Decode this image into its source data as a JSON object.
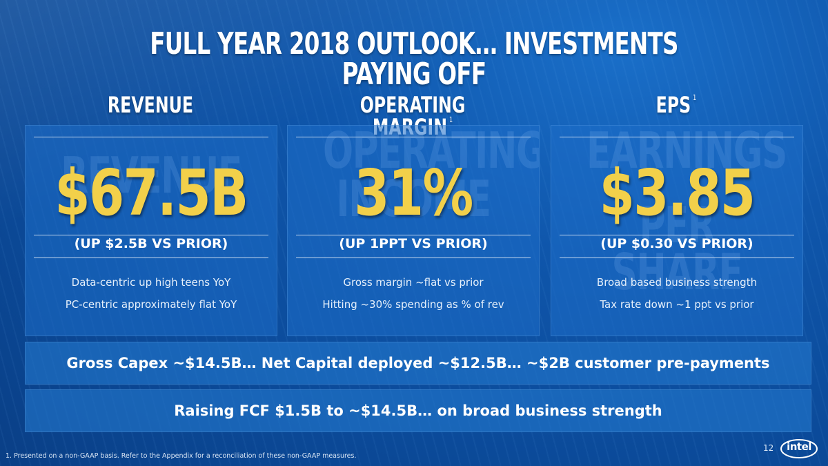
{
  "title": "FULL YEAR 2018 OUTLOOK… INVESTMENTS PAYING OFF",
  "columns": [
    {
      "heading": "REVENUE",
      "footnote_mark": "",
      "watermark": [
        "REVENUE"
      ],
      "value": "$67.5B",
      "sub": "(UP $2.5B VS PRIOR)",
      "bullets": [
        "Data-centric up high teens YoY",
        "PC-centric approximately flat YoY"
      ]
    },
    {
      "heading": "OPERATING MARGIN",
      "footnote_mark": "1",
      "watermark": [
        "OPERATING",
        "INCOME"
      ],
      "value": "31%",
      "sub": "(UP 1PPT VS PRIOR)",
      "bullets": [
        "Gross margin ~flat vs prior",
        "Hitting ~30% spending as % of rev"
      ]
    },
    {
      "heading": "EPS",
      "footnote_mark": "1",
      "watermark": [
        "EARNINGS",
        "PER SHARE"
      ],
      "value": "$3.85",
      "sub": "(UP $0.30 VS PRIOR)",
      "bullets": [
        "Broad based business strength",
        "Tax rate down ~1 ppt vs prior"
      ]
    }
  ],
  "banners": [
    "Gross Capex ~$14.5B… Net Capital deployed ~$12.5B… ~$2B customer pre-payments",
    "Raising FCF $1.5B to ~$14.5B… on broad business strength"
  ],
  "footnote": "1. Presented on a non-GAAP basis. Refer to the Appendix for a reconciliation of these non-GAAP measures.",
  "page_number": "12",
  "logo_text": "intel",
  "colors": {
    "background": "#0b4a99",
    "value_yellow": "#f2d04a",
    "text": "#ffffff"
  }
}
